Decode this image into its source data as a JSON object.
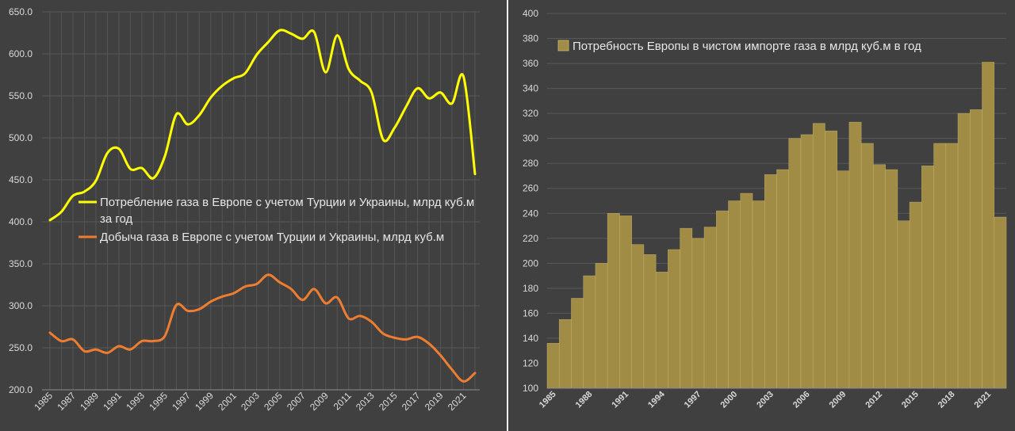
{
  "chart_data": [
    {
      "type": "line",
      "title": "",
      "x": [
        1985,
        1986,
        1987,
        1988,
        1989,
        1990,
        1991,
        1992,
        1993,
        1994,
        1995,
        1996,
        1997,
        1998,
        1999,
        2000,
        2001,
        2002,
        2003,
        2004,
        2005,
        2006,
        2007,
        2008,
        2009,
        2010,
        2011,
        2012,
        2013,
        2014,
        2015,
        2016,
        2017,
        2018,
        2019,
        2020,
        2021,
        2022
      ],
      "xtick_labels": [
        "1985",
        "1987",
        "1989",
        "1991",
        "1993",
        "1995",
        "1997",
        "1999",
        "2001",
        "2003",
        "2005",
        "2007",
        "2009",
        "2011",
        "2013",
        "2015",
        "2017",
        "2019",
        "2021"
      ],
      "ylim": [
        200,
        650
      ],
      "ytick_labels": [
        "200.0",
        "250.0",
        "300.0",
        "350.0",
        "400.0",
        "450.0",
        "500.0",
        "550.0",
        "600.0",
        "650.0"
      ],
      "grid": true,
      "legend_position": "center",
      "series": [
        {
          "name": "Потребление газа в Европе с учетом Турции и Украины, млрд куб.м за год",
          "legend_lines": [
            "Потребление газа в Европе с учетом Турции и Украины, млрд куб.м",
            "за год"
          ],
          "color": "#ffff00",
          "values": [
            402,
            412,
            431,
            436,
            449,
            482,
            487,
            463,
            464,
            452,
            478,
            528,
            516,
            527,
            548,
            562,
            571,
            577,
            599,
            614,
            628,
            624,
            618,
            626,
            578,
            622,
            582,
            568,
            554,
            498,
            512,
            537,
            559,
            547,
            554,
            541,
            573,
            457
          ]
        },
        {
          "name": "Добыча газа в Европе с учетом Турции и Украины, млрд куб.м",
          "legend_lines": [
            "Добыча газа в Европе с учетом Турции и Украины, млрд куб.м"
          ],
          "color": "#ed7d31",
          "values": [
            268,
            258,
            260,
            246,
            248,
            244,
            252,
            248,
            258,
            258,
            264,
            301,
            294,
            296,
            305,
            311,
            315,
            323,
            326,
            337,
            328,
            320,
            307,
            320,
            303,
            310,
            285,
            288,
            281,
            267,
            262,
            260,
            263,
            255,
            241,
            224,
            210,
            220
          ]
        }
      ]
    },
    {
      "type": "bar",
      "title": "",
      "series_name": "Потребность Европы в чистом импорте газа в млрд куб.м в год",
      "color": "#a08c45",
      "categories": [
        1985,
        1986,
        1987,
        1988,
        1989,
        1990,
        1991,
        1992,
        1993,
        1994,
        1995,
        1996,
        1997,
        1998,
        1999,
        2000,
        2001,
        2002,
        2003,
        2004,
        2005,
        2006,
        2007,
        2008,
        2009,
        2010,
        2011,
        2012,
        2013,
        2014,
        2015,
        2016,
        2017,
        2018,
        2019,
        2020,
        2021,
        2022
      ],
      "xtick_labels": [
        "1985",
        "1988",
        "1991",
        "1994",
        "1997",
        "2000",
        "2003",
        "2006",
        "2009",
        "2012",
        "2015",
        "2018",
        "2021"
      ],
      "values": [
        136,
        155,
        172,
        190,
        200,
        240,
        238,
        215,
        207,
        193,
        211,
        228,
        220,
        229,
        242,
        250,
        256,
        250,
        271,
        275,
        300,
        303,
        312,
        306,
        274,
        313,
        296,
        279,
        275,
        234,
        249,
        278,
        296,
        296,
        320,
        323,
        361,
        237
      ],
      "ylim": [
        100,
        400
      ],
      "ytick_labels": [
        "100",
        "120",
        "140",
        "160",
        "180",
        "200",
        "220",
        "240",
        "260",
        "280",
        "300",
        "320",
        "340",
        "360",
        "380",
        "400"
      ],
      "grid": true,
      "legend_position": "top-left"
    }
  ]
}
